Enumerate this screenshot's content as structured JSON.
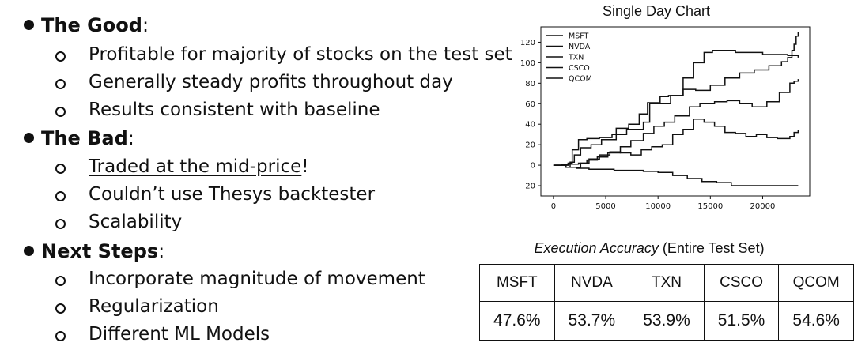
{
  "bullets": {
    "good": {
      "title": "The Good",
      "items": [
        "Profitable for majority of stocks on the test set",
        "Generally steady profits throughout day",
        "Results consistent with baseline"
      ]
    },
    "bad": {
      "title": "The Bad",
      "items_first_underlined": "Traded at the mid-price",
      "items_first_suffix": "!",
      "items": [
        "Couldn’t use Thesys backtester",
        "Scalability"
      ]
    },
    "next": {
      "title": "Next Steps",
      "items": [
        "Incorporate magnitude of movement",
        "Regularization",
        "Different ML Models"
      ]
    },
    "colon": ":"
  },
  "chart_data": {
    "type": "line",
    "title": "Single Day Chart",
    "xlabel": "",
    "ylabel": "",
    "xlim": [
      -1200,
      24500
    ],
    "ylim": [
      -30,
      135
    ],
    "xticks": [
      0,
      5000,
      10000,
      15000,
      20000
    ],
    "yticks": [
      -20,
      0,
      20,
      40,
      60,
      80,
      100,
      120
    ],
    "legend_position": "top-left",
    "grid": false,
    "series": [
      {
        "name": "MSFT",
        "x": [
          0,
          800,
          1600,
          2000,
          2600,
          3600,
          4600,
          6000,
          7200,
          8200,
          9000,
          10000,
          11200,
          12400,
          13600,
          15000,
          16400,
          17800,
          19200,
          20600,
          21800,
          22400,
          22800,
          23000,
          23200,
          23400
        ],
        "y": [
          0,
          1,
          3,
          10,
          17,
          20,
          25,
          36,
          40,
          50,
          61,
          60,
          68,
          74,
          73,
          78,
          85,
          90,
          93,
          97,
          101,
          105,
          112,
          118,
          126,
          130
        ]
      },
      {
        "name": "NVDA",
        "x": [
          0,
          600,
          1400,
          1800,
          2400,
          3200,
          4400,
          5600,
          7000,
          8600,
          9200,
          10200,
          11000,
          12400,
          13400,
          14400,
          15200,
          16400,
          17400,
          18600,
          20000,
          21400,
          22400,
          23400
        ],
        "y": [
          0,
          0,
          2,
          15,
          25,
          26,
          27,
          30,
          35,
          42,
          60,
          67,
          68,
          85,
          100,
          110,
          112,
          112,
          110,
          110,
          108,
          108,
          107,
          105
        ]
      },
      {
        "name": "TXN",
        "x": [
          0,
          1000,
          1800,
          2400,
          3200,
          4200,
          5200,
          6400,
          7400,
          8600,
          9600,
          10600,
          11600,
          13000,
          14000,
          15400,
          16600,
          17800,
          19000,
          20400,
          21600,
          22600,
          23000,
          23400
        ],
        "y": [
          0,
          1,
          1,
          2,
          5,
          8,
          12,
          18,
          24,
          31,
          38,
          42,
          48,
          57,
          60,
          62,
          63,
          60,
          57,
          62,
          71,
          80,
          82,
          84
        ]
      },
      {
        "name": "CSCO",
        "x": [
          0,
          800,
          1600,
          2600,
          3400,
          4400,
          5400,
          6400,
          7400,
          8400,
          9400,
          10400,
          11400,
          12400,
          13400,
          14400,
          15400,
          16400,
          17400,
          18400,
          19400,
          20400,
          21400,
          22600,
          23000,
          23400
        ],
        "y": [
          0,
          1,
          -2,
          2,
          6,
          10,
          13,
          12,
          10,
          15,
          18,
          20,
          30,
          35,
          45,
          42,
          38,
          32,
          31,
          28,
          30,
          27,
          26,
          28,
          32,
          34
        ]
      },
      {
        "name": "QCOM",
        "x": [
          0,
          1200,
          2200,
          3400,
          4600,
          5800,
          7200,
          8600,
          10000,
          11400,
          12800,
          14200,
          15600,
          17000,
          18600,
          20200,
          21800,
          23400
        ],
        "y": [
          0,
          -2,
          -3,
          -4,
          -4,
          -5,
          -5,
          -6,
          -7,
          -10,
          -13,
          -16,
          -17,
          -20,
          -20,
          -20,
          -20,
          -20
        ]
      }
    ]
  },
  "table": {
    "caption_italic": "Execution Accuracy",
    "caption_rest": " (Entire Test Set)",
    "headers": [
      "MSFT",
      "NVDA",
      "TXN",
      "CSCO",
      "QCOM"
    ],
    "values": [
      "47.6%",
      "53.7%",
      "53.9%",
      "51.5%",
      "54.6%"
    ]
  }
}
